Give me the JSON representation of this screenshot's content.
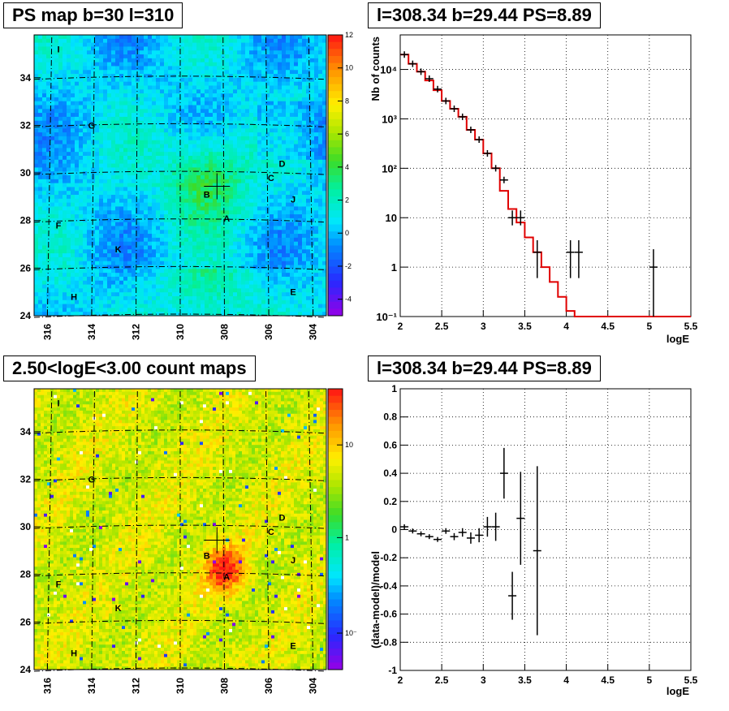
{
  "chart_data": [
    {
      "id": "ps_map",
      "type": "heatmap",
      "title": "PS map b=30 l=310",
      "x_ticks": [
        "316",
        "314",
        "312",
        "310",
        "308",
        "306",
        "304"
      ],
      "y_ticks": [
        "24",
        "26",
        "28",
        "30",
        "32",
        "34"
      ],
      "xlim": [
        316.6,
        303.4
      ],
      "ylim": [
        24,
        35.8
      ],
      "colorbar": {
        "min": -5,
        "max": 12,
        "ticks": [
          "12",
          "10",
          "8",
          "6",
          "4",
          "2",
          "0",
          "-2",
          "-4"
        ]
      },
      "hotspot": {
        "l": 308.8,
        "b": 29.8,
        "level": 6
      },
      "crosshair": {
        "l": 308.34,
        "b": 29.44
      },
      "sources": [
        {
          "label": "I",
          "l": 315.5,
          "b": 35.2
        },
        {
          "label": "G",
          "l": 314.0,
          "b": 32.0
        },
        {
          "label": "D",
          "l": 305.4,
          "b": 30.4
        },
        {
          "label": "C",
          "l": 305.9,
          "b": 29.8
        },
        {
          "label": "B",
          "l": 308.8,
          "b": 29.1
        },
        {
          "label": "J",
          "l": 304.9,
          "b": 28.9
        },
        {
          "label": "A",
          "l": 307.9,
          "b": 28.1
        },
        {
          "label": "F",
          "l": 315.5,
          "b": 27.8
        },
        {
          "label": "K",
          "l": 312.8,
          "b": 26.8
        },
        {
          "label": "E",
          "l": 304.9,
          "b": 25.0
        },
        {
          "label": "H",
          "l": 314.8,
          "b": 24.8
        }
      ]
    },
    {
      "id": "counts_spectrum",
      "type": "line",
      "title": "l=308.34 b=29.44 PS=8.89",
      "xlabel": "logE",
      "ylabel": "Nb of counts",
      "xlim": [
        2,
        5.5
      ],
      "ylim": [
        0.1,
        50000
      ],
      "yscale": "log",
      "x_ticks": [
        "2",
        "2.5",
        "3",
        "3.5",
        "4",
        "4.5",
        "5",
        "5.5"
      ],
      "y_ticks": [
        {
          "value": 0.1,
          "label": "10⁻¹"
        },
        {
          "value": 1,
          "label": "1"
        },
        {
          "value": 10,
          "label": "10"
        },
        {
          "value": 100,
          "label": "10²"
        },
        {
          "value": 1000,
          "label": "10³"
        },
        {
          "value": 10000,
          "label": "10⁴"
        }
      ],
      "model_step": {
        "edges": [
          2.0,
          2.1,
          2.2,
          2.3,
          2.4,
          2.5,
          2.6,
          2.7,
          2.8,
          2.9,
          3.0,
          3.1,
          3.2,
          3.3,
          3.4,
          3.5,
          3.6,
          3.7,
          3.8,
          3.9,
          4.0,
          4.1,
          5.5
        ],
        "values": [
          20000,
          13000,
          9000,
          6000,
          3800,
          2300,
          1600,
          1100,
          600,
          380,
          200,
          100,
          35,
          15,
          8,
          4,
          2,
          1,
          0.5,
          0.25,
          0.13,
          0.1
        ]
      },
      "data_points": [
        {
          "x": 2.05,
          "y": 20000,
          "ylo": 20000,
          "yhi": 20000
        },
        {
          "x": 2.15,
          "y": 13000,
          "ylo": 13000,
          "yhi": 13000
        },
        {
          "x": 2.25,
          "y": 9000,
          "ylo": 9000,
          "yhi": 9000
        },
        {
          "x": 2.35,
          "y": 6500,
          "ylo": 6500,
          "yhi": 6500
        },
        {
          "x": 2.45,
          "y": 4000,
          "ylo": 4000,
          "yhi": 4000
        },
        {
          "x": 2.55,
          "y": 2300,
          "ylo": 2300,
          "yhi": 2300
        },
        {
          "x": 2.65,
          "y": 1600,
          "ylo": 1600,
          "yhi": 1600
        },
        {
          "x": 2.75,
          "y": 1100,
          "ylo": 1100,
          "yhi": 1100
        },
        {
          "x": 2.85,
          "y": 600,
          "ylo": 600,
          "yhi": 600
        },
        {
          "x": 2.95,
          "y": 380,
          "ylo": 380,
          "yhi": 380
        },
        {
          "x": 3.05,
          "y": 200,
          "ylo": 185,
          "yhi": 215
        },
        {
          "x": 3.15,
          "y": 100,
          "ylo": 90,
          "yhi": 110
        },
        {
          "x": 3.25,
          "y": 58,
          "ylo": 50,
          "yhi": 66
        },
        {
          "x": 3.35,
          "y": 10,
          "ylo": 7,
          "yhi": 14
        },
        {
          "x": 3.45,
          "y": 10,
          "ylo": 7,
          "yhi": 14
        },
        {
          "x": 3.65,
          "y": 2,
          "ylo": 0.6,
          "yhi": 3.5
        },
        {
          "x": 4.05,
          "y": 2,
          "ylo": 0.6,
          "yhi": 3.5
        },
        {
          "x": 4.15,
          "y": 2,
          "ylo": 0.6,
          "yhi": 3.5
        },
        {
          "x": 5.05,
          "y": 1,
          "ylo": 0.1,
          "yhi": 2.3
        }
      ]
    },
    {
      "id": "count_map",
      "type": "heatmap",
      "title": "2.50<logE<3.00 count maps",
      "x_ticks": [
        "316",
        "314",
        "312",
        "310",
        "308",
        "306",
        "304"
      ],
      "y_ticks": [
        "24",
        "26",
        "28",
        "30",
        "32",
        "34"
      ],
      "xlim": [
        316.6,
        303.4
      ],
      "ylim": [
        24,
        35.8
      ],
      "colorbar": {
        "scale": "log",
        "ticks": [
          "10",
          "1",
          "10⁻¹"
        ]
      },
      "hotspot": {
        "l": 308.0,
        "b": 28.2,
        "level": 12
      },
      "crosshair": {
        "l": 308.34,
        "b": 29.44
      },
      "sources": [
        {
          "label": "I",
          "l": 315.5,
          "b": 35.2
        },
        {
          "label": "G",
          "l": 314.0,
          "b": 32.0
        },
        {
          "label": "D",
          "l": 305.4,
          "b": 30.4
        },
        {
          "label": "C",
          "l": 305.9,
          "b": 29.8
        },
        {
          "label": "B",
          "l": 308.8,
          "b": 28.8
        },
        {
          "label": "J",
          "l": 304.9,
          "b": 28.6
        },
        {
          "label": "A",
          "l": 307.9,
          "b": 27.9
        },
        {
          "label": "F",
          "l": 315.5,
          "b": 27.6
        },
        {
          "label": "K",
          "l": 312.8,
          "b": 26.6
        },
        {
          "label": "E",
          "l": 304.9,
          "b": 25.0
        },
        {
          "label": "H",
          "l": 314.8,
          "b": 24.7
        }
      ]
    },
    {
      "id": "residuals",
      "type": "scatter",
      "title": "l=308.34 b=29.44 PS=8.89",
      "xlabel": "logE",
      "ylabel": "(data-model)/model",
      "xlim": [
        2,
        5.5
      ],
      "ylim": [
        -1,
        1
      ],
      "x_ticks": [
        "2",
        "2.5",
        "3",
        "3.5",
        "4",
        "4.5",
        "5",
        "5.5"
      ],
      "y_ticks": [
        "1",
        "0.8",
        "0.6",
        "0.4",
        "0.2",
        "0",
        "-0.2",
        "-0.4",
        "-0.6",
        "-0.8",
        "-1"
      ],
      "points": [
        {
          "x": 2.05,
          "y": 0.02,
          "err": 0.005
        },
        {
          "x": 2.15,
          "y": -0.01,
          "err": 0.005
        },
        {
          "x": 2.25,
          "y": -0.03,
          "err": 0.008
        },
        {
          "x": 2.35,
          "y": -0.05,
          "err": 0.01
        },
        {
          "x": 2.45,
          "y": -0.07,
          "err": 0.012
        },
        {
          "x": 2.55,
          "y": -0.01,
          "err": 0.02
        },
        {
          "x": 2.65,
          "y": -0.05,
          "err": 0.025
        },
        {
          "x": 2.75,
          "y": -0.02,
          "err": 0.03
        },
        {
          "x": 2.85,
          "y": -0.06,
          "err": 0.04
        },
        {
          "x": 2.95,
          "y": -0.04,
          "err": 0.05
        },
        {
          "x": 3.05,
          "y": 0.02,
          "err": 0.07
        },
        {
          "x": 3.15,
          "y": 0.02,
          "err": 0.1
        },
        {
          "x": 3.25,
          "y": 0.4,
          "err": 0.18
        },
        {
          "x": 3.35,
          "y": -0.47,
          "err": 0.17
        },
        {
          "x": 3.45,
          "y": 0.08,
          "err": 0.33
        },
        {
          "x": 3.65,
          "y": -0.15,
          "err": 0.6
        }
      ]
    }
  ]
}
